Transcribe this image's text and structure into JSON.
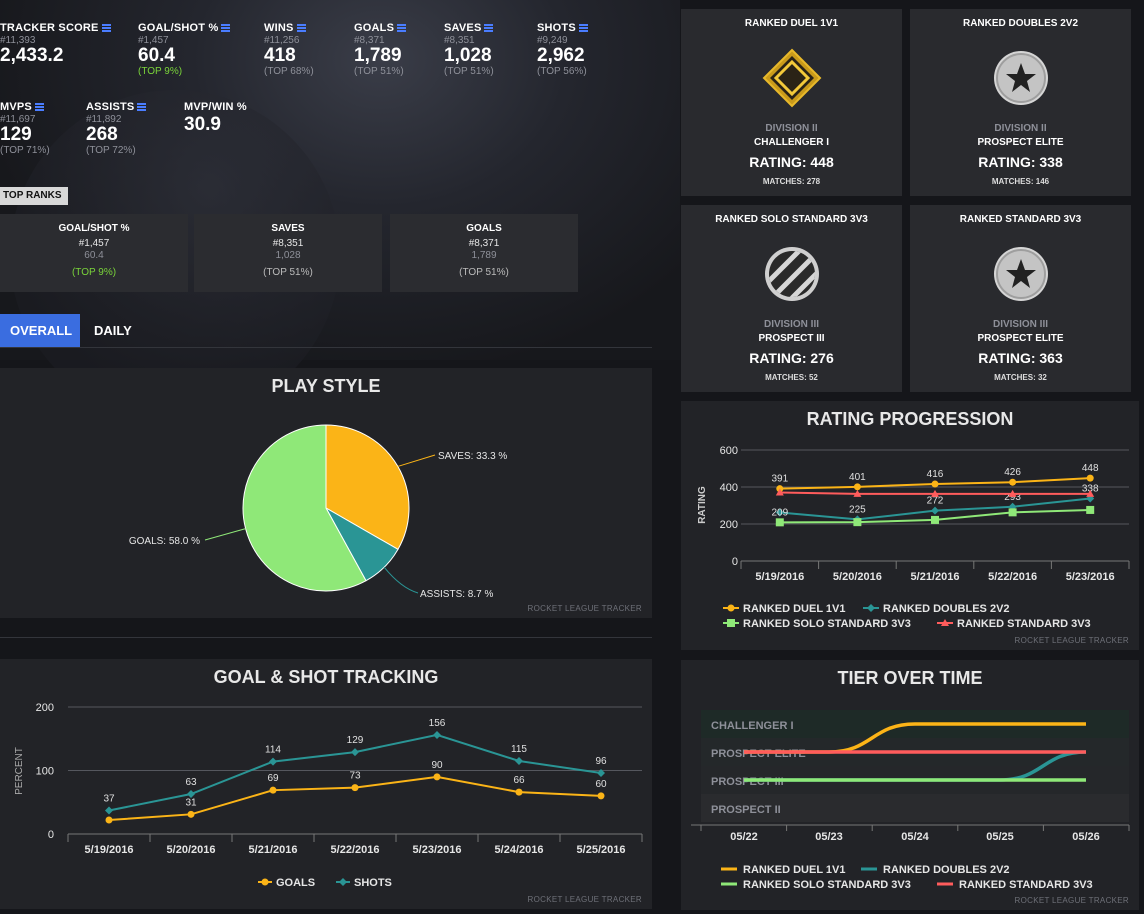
{
  "stats": [
    {
      "label": "TRACKER SCORE",
      "rank": "#11,393",
      "value": "2,433.2",
      "top": ""
    },
    {
      "label": "GOAL/SHOT %",
      "rank": "#1,457",
      "value": "60.4",
      "top": "(TOP 9%)"
    },
    {
      "label": "WINS",
      "rank": "#11,256",
      "value": "418",
      "top": "(TOP 68%)"
    },
    {
      "label": "GOALS",
      "rank": "#8,371",
      "value": "1,789",
      "top": "(TOP 51%)"
    },
    {
      "label": "SAVES",
      "rank": "#8,351",
      "value": "1,028",
      "top": "(TOP 51%)"
    },
    {
      "label": "SHOTS",
      "rank": "#9,249",
      "value": "2,962",
      "top": "(TOP 56%)"
    },
    {
      "label": "MVPS",
      "rank": "#11,697",
      "value": "129",
      "top": "(TOP 71%)"
    },
    {
      "label": "ASSISTS",
      "rank": "#11,892",
      "value": "268",
      "top": "(TOP 72%)"
    },
    {
      "label": "MVP/WIN %",
      "rank": "",
      "value": "30.9",
      "top": ""
    }
  ],
  "top_ranks_label": "TOP RANKS",
  "top_ranks": [
    {
      "title": "GOAL/SHOT %",
      "rank": "#1,457",
      "value": "60.4",
      "top": "(TOP 9%)"
    },
    {
      "title": "SAVES",
      "rank": "#8,351",
      "value": "1,028",
      "top": "(TOP 51%)"
    },
    {
      "title": "GOALS",
      "rank": "#8,371",
      "value": "1,789",
      "top": "(TOP 51%)"
    }
  ],
  "tabs": {
    "overall": "OVERALL",
    "daily": "DAILY"
  },
  "watermark": "ROCKET LEAGUE TRACKER",
  "ranked": [
    {
      "title": "RANKED DUEL 1V1",
      "division": "DIVISION II",
      "tier": "CHALLENGER I",
      "rating": "RATING: 448",
      "matches": "MATCHES: 278",
      "icon": "diamond-gold-icon"
    },
    {
      "title": "RANKED DOUBLES 2V2",
      "division": "DIVISION II",
      "tier": "PROSPECT ELITE",
      "rating": "RATING: 338",
      "matches": "MATCHES: 146",
      "icon": "star-badge-icon"
    },
    {
      "title": "RANKED SOLO STANDARD 3V3",
      "division": "DIVISION III",
      "tier": "PROSPECT III",
      "rating": "RATING: 276",
      "matches": "MATCHES: 52",
      "icon": "striped-badge-icon"
    },
    {
      "title": "RANKED STANDARD 3V3",
      "division": "DIVISION III",
      "tier": "PROSPECT ELITE",
      "rating": "RATING: 363",
      "matches": "MATCHES: 32",
      "icon": "star-badge-icon"
    }
  ],
  "chart_data": [
    {
      "type": "pie",
      "title": "PLAY STYLE",
      "slices": [
        {
          "label": "SAVES",
          "value": 33.3,
          "text": "SAVES: 33.3 %",
          "color": "#fbb417"
        },
        {
          "label": "ASSISTS",
          "value": 8.7,
          "text": "ASSISTS: 8.7 %",
          "color": "#2a9595"
        },
        {
          "label": "GOALS",
          "value": 58.0,
          "text": "GOALS: 58.0 %",
          "color": "#8fe878"
        }
      ]
    },
    {
      "type": "line",
      "title": "GOAL & SHOT TRACKING",
      "ylabel": "PERCENT",
      "ylim": [
        0,
        200
      ],
      "yticks": [
        0,
        100,
        200
      ],
      "categories": [
        "5/19/2016",
        "5/20/2016",
        "5/21/2016",
        "5/22/2016",
        "5/23/2016",
        "5/24/2016",
        "5/25/2016"
      ],
      "series": [
        {
          "name": "GOALS",
          "color": "#fbb417",
          "values": [
            22,
            31,
            69,
            73,
            90,
            66,
            60
          ],
          "labels": [
            "",
            "31",
            "69",
            "73",
            "90",
            "66",
            "60"
          ]
        },
        {
          "name": "SHOTS",
          "color": "#2a9595",
          "values": [
            37,
            63,
            114,
            129,
            156,
            115,
            96
          ],
          "labels": [
            "37",
            "63",
            "114",
            "129",
            "156",
            "115",
            "96"
          ]
        }
      ],
      "legend": "bottom"
    },
    {
      "type": "line",
      "title": "RATING PROGRESSION",
      "ylabel": "RATING",
      "ylim": [
        0,
        600
      ],
      "yticks": [
        0,
        200,
        400,
        600
      ],
      "categories": [
        "5/19/2016",
        "5/20/2016",
        "5/21/2016",
        "5/22/2016",
        "5/23/2016"
      ],
      "series": [
        {
          "name": "RANKED DUEL 1V1",
          "color": "#fbb417",
          "marker": "circle",
          "values": [
            391,
            401,
            416,
            426,
            448
          ],
          "labels": [
            "391",
            "401",
            "416",
            "426",
            "448"
          ]
        },
        {
          "name": "RANKED DOUBLES 2V2",
          "color": "#2a9595",
          "marker": "diamond",
          "values": [
            262,
            225,
            272,
            293,
            338
          ],
          "labels": [
            "",
            "225",
            "272",
            "293",
            "338"
          ]
        },
        {
          "name": "RANKED SOLO STANDARD 3V3",
          "color": "#8fe878",
          "marker": "square",
          "values": [
            209,
            210,
            222,
            263,
            276
          ],
          "labels": [
            "209",
            "",
            "",
            "",
            ""
          ]
        },
        {
          "name": "RANKED STANDARD 3V3",
          "color": "#ff5c5c",
          "marker": "triangle",
          "values": [
            370,
            363,
            363,
            363,
            363
          ],
          "labels": [
            "",
            "",
            "",
            "",
            ""
          ]
        }
      ],
      "legend": "bottom"
    },
    {
      "type": "line",
      "title": "TIER OVER TIME",
      "tiers": [
        "CHALLENGER I",
        "PROSPECT ELITE",
        "PROSPECT III",
        "PROSPECT II"
      ],
      "categories": [
        "05/22",
        "05/23",
        "05/24",
        "05/25",
        "05/26"
      ],
      "series": [
        {
          "name": "RANKED DUEL 1V1",
          "color": "#fbb417",
          "values": [
            "PROSPECT ELITE",
            "PROSPECT ELITE",
            "CHALLENGER I",
            "CHALLENGER I",
            "CHALLENGER I"
          ]
        },
        {
          "name": "RANKED DOUBLES 2V2",
          "color": "#2a9595",
          "values": [
            "PROSPECT III",
            "PROSPECT III",
            "PROSPECT III",
            "PROSPECT III",
            "PROSPECT ELITE"
          ]
        },
        {
          "name": "RANKED SOLO STANDARD 3V3",
          "color": "#8fe878",
          "values": [
            "PROSPECT III",
            "PROSPECT III",
            "PROSPECT III",
            "PROSPECT III",
            "PROSPECT III"
          ]
        },
        {
          "name": "RANKED STANDARD 3V3",
          "color": "#ff5c5c",
          "values": [
            "PROSPECT ELITE",
            "PROSPECT ELITE",
            "PROSPECT ELITE",
            "PROSPECT ELITE",
            "PROSPECT ELITE"
          ]
        }
      ],
      "legend": "bottom"
    }
  ]
}
